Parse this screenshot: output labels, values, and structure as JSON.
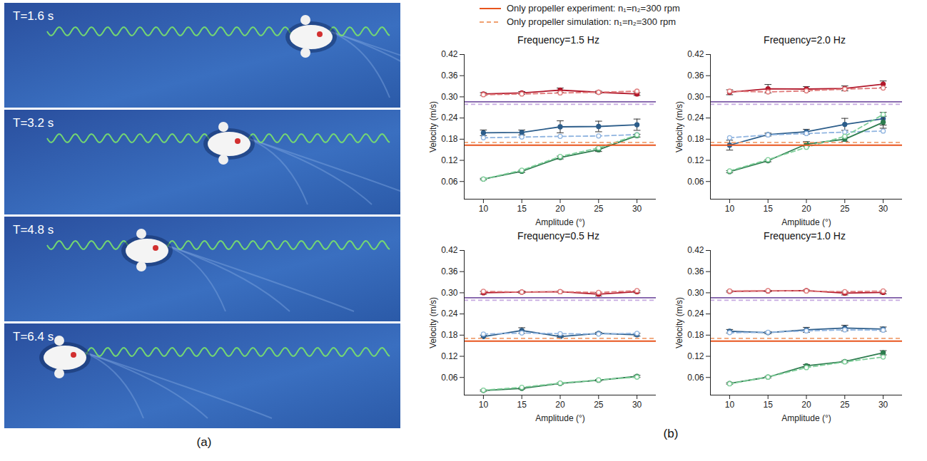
{
  "figure": {
    "panels": [
      {
        "label": "(a)",
        "frames": [
          "T=1.6 s",
          "T=3.2 s",
          "T=4.8 s",
          "T=6.4 s"
        ]
      },
      {
        "label": "(b)"
      }
    ]
  },
  "chart_data": [
    {
      "type": "line",
      "title": "Frequency=1.5 Hz",
      "x_label": "Amplitude (°)",
      "y_label": "Velocity (m/s)",
      "x": [
        10,
        15,
        20,
        25,
        30
      ],
      "xlim": [
        7.5,
        32.5
      ],
      "xticks": [
        10,
        15,
        20,
        25,
        30
      ],
      "ylim": [
        0.01,
        0.42
      ],
      "yticks": [
        0.06,
        0.12,
        0.18,
        0.24,
        {
          "value": 0.3,
          "label": "0.30"
        },
        0.36,
        0.42
      ],
      "legend": "top",
      "grid": false,
      "series": [
        {
          "color": "#b2182b",
          "line_style": "solid",
          "marker": "circle",
          "values": [
            0.308,
            0.311,
            0.319,
            0.313,
            0.308
          ],
          "errors": [
            0.004,
            0.004,
            0.006,
            0.003,
            0.004
          ]
        },
        {
          "color": "#e07b7b",
          "line_style": "dashed",
          "marker": "circle_open",
          "values": [
            0.306,
            0.308,
            0.311,
            0.313,
            0.316
          ]
        },
        {
          "color": "#2c5d8a",
          "line_style": "solid",
          "marker": "circle",
          "values": [
            0.198,
            0.199,
            0.215,
            0.216,
            0.221
          ],
          "errors": [
            0.008,
            0.007,
            0.017,
            0.015,
            0.016
          ]
        },
        {
          "color": "#8fb4e0",
          "line_style": "dashed",
          "marker": "circle_open",
          "values": [
            0.184,
            0.186,
            0.188,
            0.189,
            0.193
          ]
        },
        {
          "color": "#2e7d4f",
          "line_style": "solid",
          "marker": "circle",
          "values": [
            0.067,
            0.089,
            0.128,
            0.15,
            0.19
          ],
          "errors": [
            0.002,
            0.003,
            0.004,
            0.005,
            0.004
          ]
        },
        {
          "color": "#7fcf9a",
          "line_style": "dashed",
          "marker": "circle_open",
          "values": [
            0.067,
            0.092,
            0.131,
            0.155,
            0.192
          ]
        },
        {
          "type": "rule",
          "color": "#7b59a6",
          "line_style": "solid",
          "value": 0.286
        },
        {
          "type": "rule",
          "color": "#c6a9e0",
          "line_style": "dashed",
          "value": 0.279
        },
        {
          "type": "rule",
          "name": "Only propeller experiment: n₁=n₂=300 rpm",
          "color": "#e8541c",
          "line_style": "solid",
          "value": 0.163
        },
        {
          "type": "rule",
          "name": "Only propeller simulation: n₁=n₂=300 rpm",
          "color": "#f0a070",
          "line_style": "dashed",
          "value": 0.171
        }
      ]
    },
    {
      "type": "line",
      "title": "Frequency=2.0 Hz",
      "x_label": "Amplitude (°)",
      "y_label": "Velocity (m/s)",
      "x": [
        10,
        15,
        20,
        25,
        30
      ],
      "xlim": [
        7.5,
        32.5
      ],
      "xticks": [
        10,
        15,
        20,
        25,
        30
      ],
      "ylim": [
        0.01,
        0.42
      ],
      "yticks": [
        0.06,
        0.12,
        0.18,
        0.24,
        {
          "value": 0.3,
          "label": "0.30"
        },
        0.36,
        0.42
      ],
      "legend": "top",
      "grid": false,
      "series": [
        {
          "color": "#b2182b",
          "line_style": "solid",
          "marker": "circle",
          "values": [
            0.313,
            0.323,
            0.322,
            0.324,
            0.336
          ],
          "errors": [
            0.007,
            0.012,
            0.007,
            0.007,
            0.009
          ]
        },
        {
          "color": "#e07b7b",
          "line_style": "dashed",
          "marker": "circle_open",
          "values": [
            0.316,
            0.314,
            0.317,
            0.322,
            0.325
          ]
        },
        {
          "color": "#2c5d8a",
          "line_style": "solid",
          "marker": "circle",
          "values": [
            0.163,
            0.193,
            0.201,
            0.222,
            0.238
          ],
          "errors": [
            0.014,
            0.004,
            0.007,
            0.017,
            0.018
          ]
        },
        {
          "color": "#8fb4e0",
          "line_style": "dashed",
          "marker": "circle_open",
          "values": [
            0.184,
            0.192,
            0.196,
            0.2,
            0.203
          ]
        },
        {
          "color": "#2e7d4f",
          "line_style": "solid",
          "marker": "circle",
          "values": [
            0.088,
            0.119,
            0.166,
            0.18,
            0.228
          ],
          "errors": [
            0.003,
            0.003,
            0.007,
            0.006,
            0.017
          ]
        },
        {
          "color": "#7fcf9a",
          "line_style": "dashed",
          "marker": "circle_open",
          "values": [
            0.09,
            0.122,
            0.157,
            0.188,
            0.25
          ]
        },
        {
          "type": "rule",
          "color": "#7b59a6",
          "line_style": "solid",
          "value": 0.286
        },
        {
          "type": "rule",
          "color": "#c6a9e0",
          "line_style": "dashed",
          "value": 0.279
        },
        {
          "type": "rule",
          "name": "Only propeller experiment: n₁=n₂=300 rpm",
          "color": "#e8541c",
          "line_style": "solid",
          "value": 0.163
        },
        {
          "type": "rule",
          "name": "Only propeller simulation: n₁=n₂=300 rpm",
          "color": "#f0a070",
          "line_style": "dashed",
          "value": 0.171
        }
      ]
    },
    {
      "type": "line",
      "title": "Frequency=0.5 Hz",
      "x_label": "Amplitude (°)",
      "y_label": "Velocity (m/s)",
      "x": [
        10,
        15,
        20,
        25,
        30
      ],
      "xlim": [
        7.5,
        32.5
      ],
      "xticks": [
        10,
        15,
        20,
        25,
        30
      ],
      "ylim": [
        0.01,
        0.42
      ],
      "yticks": [
        0.06,
        0.12,
        0.18,
        0.24,
        {
          "value": 0.3,
          "label": "0.30"
        },
        0.36,
        0.42
      ],
      "legend": "top",
      "grid": false,
      "series": [
        {
          "color": "#b2182b",
          "line_style": "solid",
          "marker": "circle",
          "values": [
            0.3,
            0.302,
            0.303,
            0.296,
            0.303
          ],
          "errors": [
            0.004,
            0.003,
            0.002,
            0.005,
            0.003
          ]
        },
        {
          "color": "#e07b7b",
          "line_style": "dashed",
          "marker": "circle_open",
          "values": [
            0.304,
            0.302,
            0.303,
            0.301,
            0.306
          ]
        },
        {
          "color": "#2c5d8a",
          "line_style": "solid",
          "marker": "circle",
          "values": [
            0.176,
            0.193,
            0.176,
            0.185,
            0.181
          ],
          "errors": [
            0.004,
            0.008,
            0.003,
            0.003,
            0.004
          ]
        },
        {
          "color": "#8fb4e0",
          "line_style": "dashed",
          "marker": "circle_open",
          "values": [
            0.183,
            0.186,
            0.184,
            0.183,
            0.185
          ]
        },
        {
          "color": "#2e7d4f",
          "line_style": "solid",
          "marker": "circle",
          "values": [
            0.023,
            0.029,
            0.043,
            0.052,
            0.063
          ],
          "errors": [
            0.002,
            0.002,
            0.002,
            0.002,
            0.003
          ]
        },
        {
          "color": "#7fcf9a",
          "line_style": "dashed",
          "marker": "circle_open",
          "values": [
            0.024,
            0.032,
            0.044,
            0.053,
            0.061
          ]
        },
        {
          "type": "rule",
          "color": "#7b59a6",
          "line_style": "solid",
          "value": 0.286
        },
        {
          "type": "rule",
          "color": "#c6a9e0",
          "line_style": "dashed",
          "value": 0.279
        },
        {
          "type": "rule",
          "name": "Only propeller experiment: n₁=n₂=300 rpm",
          "color": "#e8541c",
          "line_style": "solid",
          "value": 0.163
        },
        {
          "type": "rule",
          "name": "Only propeller simulation: n₁=n₂=300 rpm",
          "color": "#f0a070",
          "line_style": "dashed",
          "value": 0.171
        }
      ]
    },
    {
      "type": "line",
      "title": "Frequency=1.0 Hz",
      "x_label": "Amplitude (°)",
      "y_label": "Velocity (m/s)",
      "x": [
        10,
        15,
        20,
        25,
        30
      ],
      "xlim": [
        7.5,
        32.5
      ],
      "xticks": [
        10,
        15,
        20,
        25,
        30
      ],
      "ylim": [
        0.01,
        0.42
      ],
      "yticks": [
        0.06,
        0.12,
        0.18,
        0.24,
        {
          "value": 0.3,
          "label": "0.30"
        },
        0.36,
        0.42
      ],
      "legend": "top",
      "grid": false,
      "series": [
        {
          "color": "#b2182b",
          "line_style": "solid",
          "marker": "circle",
          "values": [
            0.304,
            0.305,
            0.306,
            0.299,
            0.301
          ],
          "errors": [
            0.002,
            0.002,
            0.002,
            0.005,
            0.004
          ]
        },
        {
          "color": "#e07b7b",
          "line_style": "dashed",
          "marker": "circle_open",
          "values": [
            0.305,
            0.306,
            0.305,
            0.303,
            0.305
          ]
        },
        {
          "color": "#2c5d8a",
          "line_style": "solid",
          "marker": "circle",
          "values": [
            0.191,
            0.187,
            0.195,
            0.2,
            0.197
          ],
          "errors": [
            0.005,
            0.003,
            0.007,
            0.008,
            0.006
          ]
        },
        {
          "color": "#8fb4e0",
          "line_style": "dashed",
          "marker": "circle_open",
          "values": [
            0.187,
            0.188,
            0.192,
            0.195,
            0.194
          ]
        },
        {
          "color": "#2e7d4f",
          "line_style": "solid",
          "marker": "circle",
          "values": [
            0.043,
            0.061,
            0.093,
            0.105,
            0.13
          ],
          "errors": [
            0.002,
            0.002,
            0.004,
            0.003,
            0.006
          ]
        },
        {
          "color": "#7fcf9a",
          "line_style": "dashed",
          "marker": "circle_open",
          "values": [
            0.042,
            0.061,
            0.088,
            0.104,
            0.118
          ]
        },
        {
          "type": "rule",
          "color": "#7b59a6",
          "line_style": "solid",
          "value": 0.286
        },
        {
          "type": "rule",
          "color": "#c6a9e0",
          "line_style": "dashed",
          "value": 0.279
        },
        {
          "type": "rule",
          "name": "Only propeller experiment: n₁=n₂=300 rpm",
          "color": "#e8541c",
          "line_style": "solid",
          "value": 0.163
        },
        {
          "type": "rule",
          "name": "Only propeller simulation: n₁=n₂=300 rpm",
          "color": "#f0a070",
          "line_style": "dashed",
          "value": 0.171
        }
      ]
    }
  ]
}
